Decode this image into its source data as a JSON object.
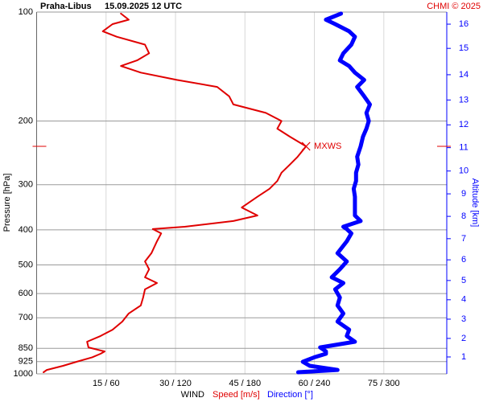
{
  "chart_data": {
    "type": "line",
    "title": "Praha-Libus",
    "subtitle": "15.09.2025 12 UTC",
    "credit": "CHMI © 2025",
    "y_label": "Pressure [hPa]",
    "y2_label": "Altitude [km]",
    "x_label": "WIND",
    "x_label_speed": "Speed [m/s]",
    "x_label_direction": "Direction [°]",
    "y_log": true,
    "ylim": [
      1000,
      100
    ],
    "yticks": [
      100,
      200,
      300,
      400,
      500,
      600,
      700,
      850,
      925,
      1000
    ],
    "xlim": [
      0,
      88.6
    ],
    "x2lim": [
      0,
      354.4
    ],
    "xticks": [
      {
        "value": 15,
        "label": "15 / 60"
      },
      {
        "value": 30,
        "label": "30 / 120"
      },
      {
        "value": 45,
        "label": "45 / 180"
      },
      {
        "value": 60,
        "label": "60 / 240"
      },
      {
        "value": 75,
        "label": "75 / 300"
      }
    ],
    "altitude_ticks": [
      {
        "value": 1,
        "pressure": 898
      },
      {
        "value": 2,
        "pressure": 798
      },
      {
        "value": 3,
        "pressure": 706
      },
      {
        "value": 4,
        "pressure": 624
      },
      {
        "value": 5,
        "pressure": 552
      },
      {
        "value": 6,
        "pressure": 484
      },
      {
        "value": 7,
        "pressure": 423
      },
      {
        "value": 8,
        "pressure": 367
      },
      {
        "value": 9,
        "pressure": 318
      },
      {
        "value": 10,
        "pressure": 275
      },
      {
        "value": 11,
        "pressure": 237
      },
      {
        "value": 12,
        "pressure": 205
      },
      {
        "value": 13,
        "pressure": 175
      },
      {
        "value": 14,
        "pressure": 149
      },
      {
        "value": 15,
        "pressure": 126
      },
      {
        "value": 16,
        "pressure": 108
      }
    ],
    "annotation": {
      "text": "MXWS",
      "pressure": 235,
      "speed": 58.2
    },
    "pressure": [
      101,
      105,
      108,
      113,
      117,
      123,
      130,
      136,
      141,
      147,
      154,
      161,
      171,
      180,
      190,
      200,
      210,
      221,
      235,
      251,
      264,
      278,
      293,
      308,
      324,
      347,
      365,
      378,
      392,
      398,
      409,
      430,
      464,
      489,
      514,
      541,
      561,
      584,
      615,
      647,
      681,
      717,
      755,
      786,
      815,
      845,
      867,
      880,
      900,
      926,
      950,
      975,
      990
    ],
    "series": [
      {
        "name": "Speed [m/s]",
        "color": "#e00000",
        "axis": "x",
        "values": [
          18.2,
          19.9,
          16.4,
          14.3,
          17.3,
          23.4,
          24.3,
          21.7,
          18.2,
          22.5,
          30.3,
          39,
          41.6,
          42.5,
          49.5,
          52.9,
          52,
          54.7,
          58.2,
          56.4,
          54.7,
          52.9,
          52,
          50.3,
          47.7,
          44.3,
          47.7,
          42.5,
          32,
          25.1,
          26.9,
          26,
          24.8,
          23.4,
          24.3,
          23.4,
          26,
          23.4,
          23,
          22.5,
          19.9,
          18.5,
          16.4,
          13.8,
          10.9,
          11.2,
          14.7,
          13.8,
          12,
          8.6,
          5.7,
          2.2,
          1.5
        ]
      },
      {
        "name": "Direction [°]",
        "color": "#0000ff",
        "axis": "x2",
        "values": [
          263,
          250,
          258,
          270,
          275,
          272,
          265,
          262,
          270,
          275,
          283,
          277,
          283,
          288,
          285,
          287,
          285,
          282,
          280,
          277,
          278,
          276,
          276,
          274,
          275,
          275,
          275,
          280,
          265,
          268,
          272,
          268,
          260,
          268,
          262,
          255,
          265,
          258,
          262,
          260,
          265,
          260,
          270,
          268,
          275,
          245,
          250,
          250,
          240,
          230,
          236,
          260,
          226
        ]
      }
    ]
  }
}
